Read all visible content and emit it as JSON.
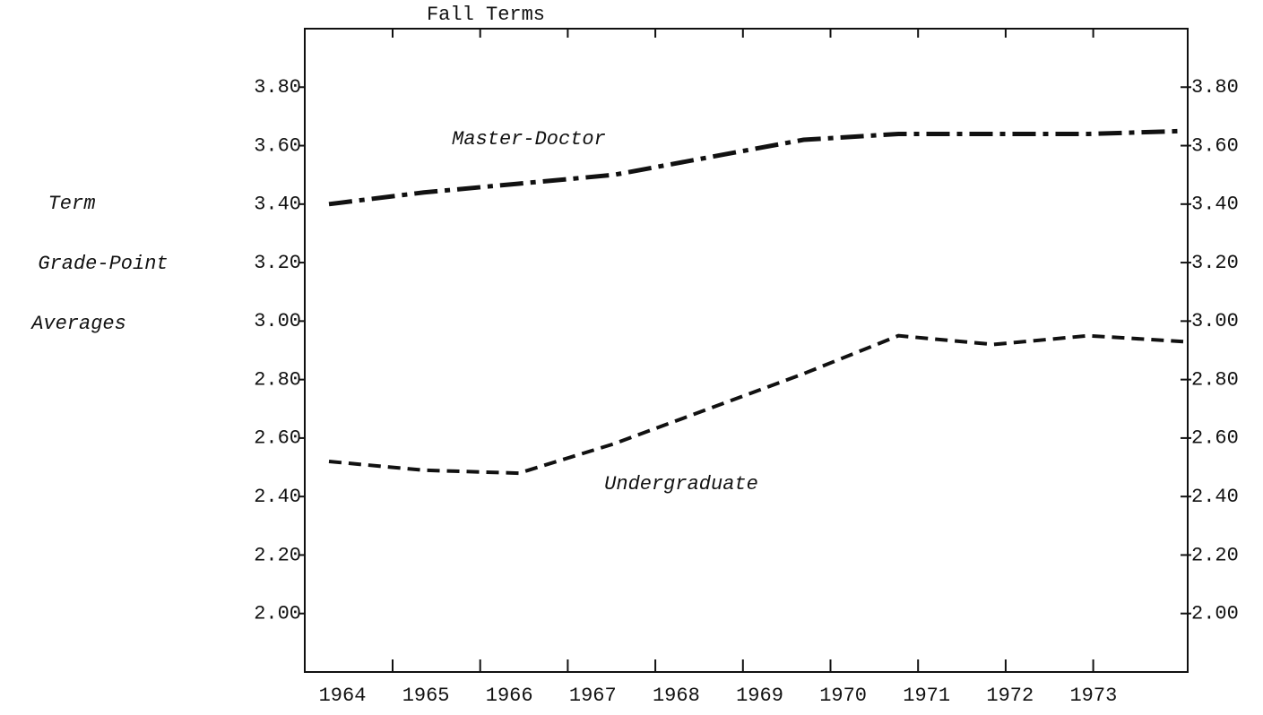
{
  "chart_data": {
    "type": "line",
    "title": "Fall Terms",
    "ylabel_lines": [
      "Term",
      "Grade-Point",
      "Averages"
    ],
    "categories": [
      "1964",
      "1965",
      "1966",
      "1967",
      "1968",
      "1969",
      "1970",
      "1971",
      "1972",
      "1973"
    ],
    "series": [
      {
        "name": "Master-Doctor",
        "color": "#111111",
        "line_style": "dashdot",
        "values": [
          3.4,
          3.44,
          3.47,
          3.5,
          3.56,
          3.62,
          3.64,
          3.64,
          3.64,
          3.65
        ]
      },
      {
        "name": "Undergraduate",
        "color": "#111111",
        "line_style": "dashed",
        "values": [
          2.52,
          2.49,
          2.48,
          2.58,
          2.7,
          2.82,
          2.95,
          2.92,
          2.95,
          2.93
        ]
      }
    ],
    "ylim": [
      1.8,
      4.0
    ],
    "yticks": [
      {
        "value": 2.0,
        "label": "2.00"
      },
      {
        "value": 2.2,
        "label": "2.20"
      },
      {
        "value": 2.4,
        "label": "2.40"
      },
      {
        "value": 2.6,
        "label": "2.60"
      },
      {
        "value": 2.8,
        "label": "2.80"
      },
      {
        "value": 3.0,
        "label": "3.00"
      },
      {
        "value": 3.2,
        "label": "3.20"
      },
      {
        "value": 3.4,
        "label": "3.40"
      },
      {
        "value": 3.6,
        "label": "3.60"
      },
      {
        "value": 3.8,
        "label": "3.80"
      }
    ],
    "right_axis_labels": true,
    "grid": false
  }
}
